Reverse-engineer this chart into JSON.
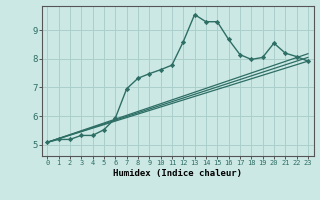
{
  "title": "",
  "xlabel": "Humidex (Indice chaleur)",
  "ylabel": "",
  "bg_color": "#cce8e4",
  "line_color": "#2d6e65",
  "grid_color": "#aacfca",
  "xticks": [
    0,
    1,
    2,
    3,
    4,
    5,
    6,
    7,
    8,
    9,
    10,
    11,
    12,
    13,
    14,
    15,
    16,
    17,
    18,
    19,
    20,
    21,
    22,
    23
  ],
  "yticks": [
    5,
    6,
    7,
    8,
    9
  ],
  "xlim": [
    -0.5,
    23.5
  ],
  "ylim": [
    4.6,
    9.85
  ],
  "lines": [
    {
      "x": [
        0,
        1,
        2,
        3,
        4,
        5,
        6,
        7,
        8,
        9,
        10,
        11,
        12,
        13,
        14,
        15,
        16,
        17,
        18,
        19,
        20,
        21,
        22,
        23
      ],
      "y": [
        5.08,
        5.18,
        5.18,
        5.32,
        5.32,
        5.52,
        5.92,
        6.95,
        7.32,
        7.48,
        7.62,
        7.78,
        8.6,
        9.55,
        9.3,
        9.3,
        8.68,
        8.15,
        7.98,
        8.05,
        8.55,
        8.2,
        8.08,
        7.92
      ],
      "marker": "D",
      "markersize": 2.2,
      "linewidth": 1.0,
      "has_marker": true
    },
    {
      "x": [
        0,
        23
      ],
      "y": [
        5.08,
        7.92
      ],
      "marker": null,
      "markersize": 0,
      "linewidth": 0.9,
      "has_marker": false
    },
    {
      "x": [
        0,
        23
      ],
      "y": [
        5.08,
        8.05
      ],
      "marker": null,
      "markersize": 0,
      "linewidth": 0.9,
      "has_marker": false
    },
    {
      "x": [
        0,
        23
      ],
      "y": [
        5.08,
        8.18
      ],
      "marker": null,
      "markersize": 0,
      "linewidth": 0.9,
      "has_marker": false
    }
  ]
}
